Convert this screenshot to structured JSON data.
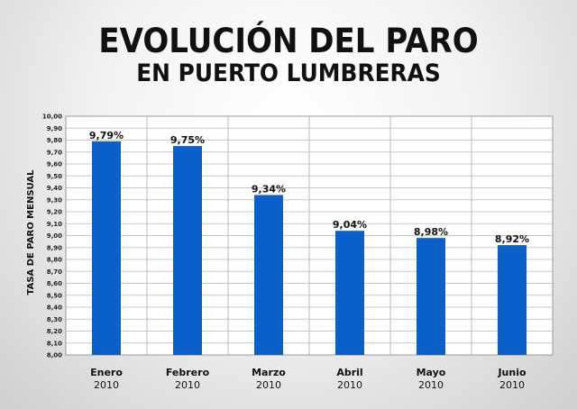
{
  "chart_data": {
    "type": "bar",
    "title": "EVOLUCIÓN DEL PARO",
    "subtitle": "EN PUERTO LUMBRERAS",
    "ylabel": "TASA DE PARO MENSUAL",
    "ylim": [
      8.0,
      10.0
    ],
    "ystep": 0.1,
    "grid": true,
    "categories": [
      "Enero",
      "Febrero",
      "Marzo",
      "Abril",
      "Mayo",
      "Junio"
    ],
    "category_years": [
      "2010",
      "2010",
      "2010",
      "2010",
      "2010",
      "2010"
    ],
    "values": [
      9.79,
      9.75,
      9.34,
      9.04,
      8.98,
      8.92
    ],
    "data_labels": [
      "9,79%",
      "9,75%",
      "9,34%",
      "9,04%",
      "8,98%",
      "8,92%"
    ],
    "y_tick_labels": [
      "8,00",
      "8,10",
      "8,20",
      "8,30",
      "8,40",
      "8,50",
      "8,60",
      "8,70",
      "8,80",
      "8,90",
      "9,00",
      "9,10",
      "9,20",
      "9,30",
      "9,40",
      "9,50",
      "9,60",
      "9,70",
      "9,80",
      "9,90",
      "10,00"
    ],
    "bar_color": "#0a5fc8"
  }
}
